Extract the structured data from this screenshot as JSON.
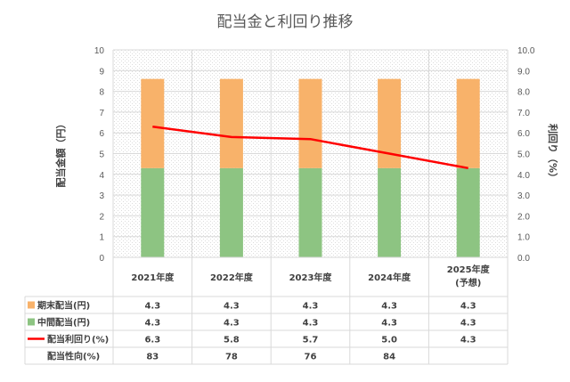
{
  "chart_data": {
    "type": "bar",
    "stacked": true,
    "title": "配当金と利回り推移",
    "ylabel": "配当金額（円）",
    "y2label": "利回り（%）",
    "ylim": [
      0,
      10
    ],
    "y2lim": [
      0,
      10
    ],
    "yticks": [
      "0",
      "1",
      "2",
      "3",
      "4",
      "5",
      "6",
      "7",
      "8",
      "9",
      "10"
    ],
    "y2ticks": [
      "0.0",
      "1.0",
      "2.0",
      "3.0",
      "4.0",
      "5.0",
      "6.0",
      "7.0",
      "8.0",
      "9.0",
      "10.0"
    ],
    "categories": [
      [
        "2021年度"
      ],
      [
        "2022年度"
      ],
      [
        "2023年度"
      ],
      [
        "2024年度"
      ],
      [
        "2025年度",
        "(予想)"
      ]
    ],
    "series": [
      {
        "name": "期末配当(円)",
        "kind": "bar",
        "color": "#f8b26a",
        "values": [
          4.3,
          4.3,
          4.3,
          4.3,
          4.3
        ],
        "labels": [
          "4.3",
          "4.3",
          "4.3",
          "4.3",
          "4.3"
        ]
      },
      {
        "name": "中間配当(円)",
        "kind": "bar",
        "color": "#8dc482",
        "values": [
          4.3,
          4.3,
          4.3,
          4.3,
          4.3
        ],
        "labels": [
          "4.3",
          "4.3",
          "4.3",
          "4.3",
          "4.3"
        ]
      },
      {
        "name": "配当利回り(%)",
        "kind": "line",
        "axis": "right",
        "color": "#ff0000",
        "values": [
          6.3,
          5.8,
          5.7,
          5.0,
          4.3
        ],
        "labels": [
          "6.3",
          "5.8",
          "5.7",
          "5.0",
          "4.3"
        ]
      }
    ],
    "extra_rows": [
      {
        "name": "配当性向(%)",
        "labels": [
          "83",
          "78",
          "76",
          "84",
          ""
        ]
      }
    ],
    "legend_placement": "data-table-left",
    "grid": true
  }
}
